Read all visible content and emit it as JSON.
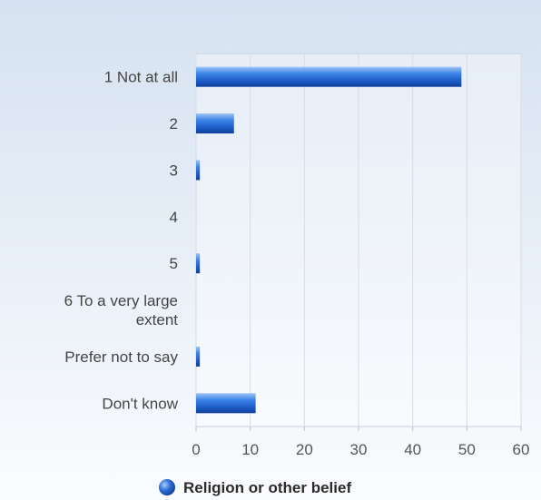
{
  "chart_data": {
    "type": "bar",
    "orientation": "horizontal",
    "categories": [
      [
        "1 Not at all"
      ],
      [
        "2"
      ],
      [
        "3"
      ],
      [
        "4"
      ],
      [
        "5"
      ],
      [
        "6 To a very large",
        "extent"
      ],
      [
        "Prefer not to say"
      ],
      [
        "Don't know"
      ]
    ],
    "series": [
      {
        "name": "Religion or other belief",
        "values": [
          49,
          7,
          0.7,
          0,
          0.7,
          0,
          0.7,
          11
        ]
      }
    ],
    "xlim": [
      0,
      60
    ],
    "xticks": [
      0,
      10,
      20,
      30,
      40,
      50,
      60
    ],
    "grid": true,
    "legend": "bottom-center",
    "bar_color": "#2f6fd6"
  }
}
